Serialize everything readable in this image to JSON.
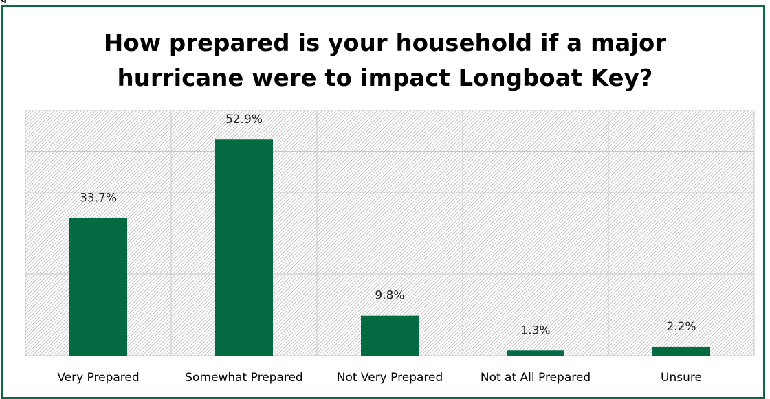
{
  "corner_text": "g",
  "chart_data": {
    "type": "bar",
    "title": "How prepared is your household if a major hurricane were to impact Longboat Key?",
    "categories": [
      "Very Prepared",
      "Somewhat Prepared",
      "Not Very Prepared",
      "Not at All Prepared",
      "Unsure"
    ],
    "values": [
      33.7,
      52.9,
      9.8,
      1.3,
      2.2
    ],
    "value_labels": [
      "33.7%",
      "52.9%",
      "9.8%",
      "1.3%",
      "2.2%"
    ],
    "xlabel": "",
    "ylabel": "",
    "ylim": [
      0,
      60
    ],
    "grid": true,
    "legend": "none",
    "bar_color": "#046a42",
    "frame_color": "#0b6a45"
  }
}
